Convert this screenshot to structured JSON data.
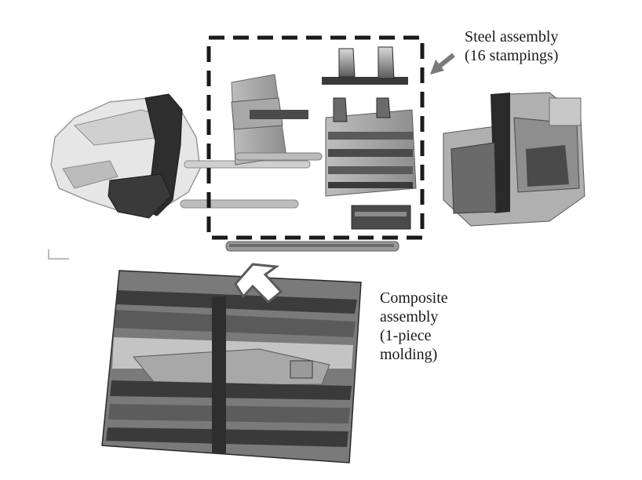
{
  "labels": {
    "steel": {
      "line1": "Steel assembly",
      "line2": "(16 stampings)"
    },
    "composite": {
      "line1": "Composite",
      "line2": "assembly",
      "line3": "(1-piece",
      "line4": "molding)"
    }
  },
  "colors": {
    "frame": "#1a1a1a",
    "arrow": "#7a7a7a",
    "part_dark": "#3a3a3a",
    "part_mid": "#8a8a8a",
    "part_light": "#c8c8c8"
  }
}
